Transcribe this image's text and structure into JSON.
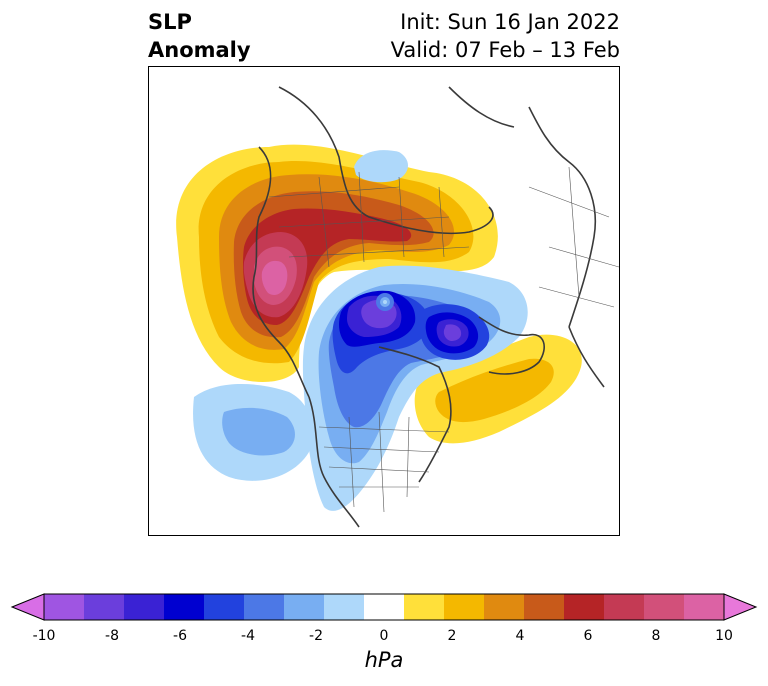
{
  "title": {
    "line1": "SLP",
    "line2": "Anomaly",
    "init": "Init: Sun 16 Jan 2022",
    "valid": "Valid: 07 Feb – 13 Feb"
  },
  "colorbar": {
    "label": "hPa",
    "ticks": [
      "-10",
      "-8",
      "-6",
      "-4",
      "-2",
      "0",
      "2",
      "4",
      "6",
      "8",
      "10"
    ],
    "colors": [
      "#d86ee6",
      "#9f55e2",
      "#6b3edc",
      "#3a22d4",
      "#0000d0",
      "#2242de",
      "#4c78e6",
      "#78aef2",
      "#aed8fa",
      "#ffffff",
      "#ffe03a",
      "#f4b800",
      "#e08a10",
      "#c85a1a",
      "#b52426",
      "#c43a54",
      "#d2507a",
      "#dc62a4",
      "#e878da"
    ],
    "extend": "both"
  },
  "map": {
    "projection": "north-polar-stereographic",
    "field": "sea-level-pressure-anomaly",
    "features": [
      {
        "name": "positive-anomaly-north-pacific-siberia",
        "peak_hpa": 8
      },
      {
        "name": "negative-anomaly-arctic-central",
        "peak_hpa": -9
      },
      {
        "name": "negative-anomaly-north-atlantic",
        "peak_hpa": -8
      },
      {
        "name": "positive-anomaly-east-atlantic",
        "peak_hpa": 3
      }
    ]
  }
}
